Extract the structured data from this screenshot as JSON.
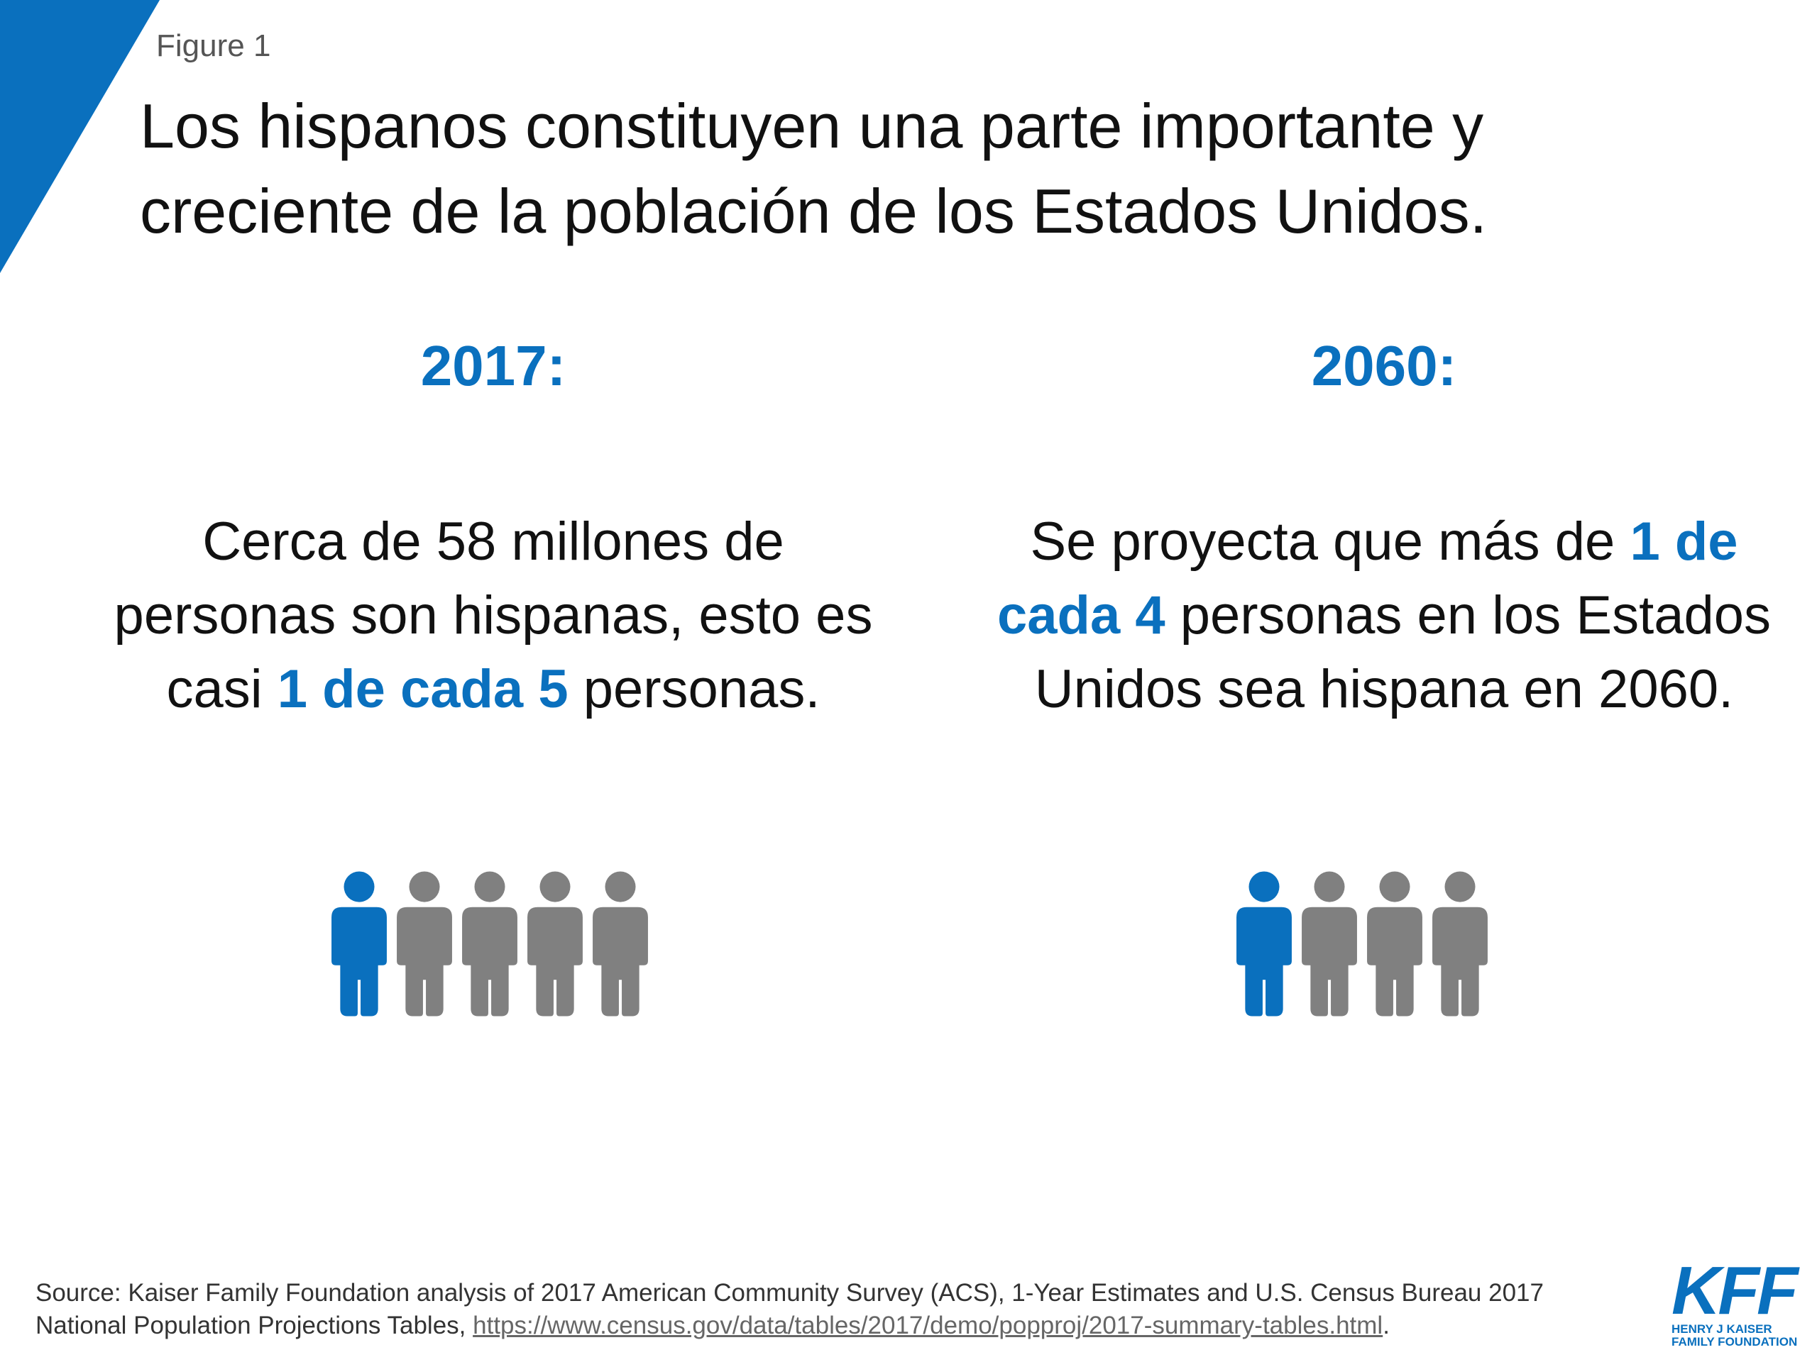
{
  "colors": {
    "accent": "#0A70BE",
    "gray": "#808080",
    "text": "#111111"
  },
  "figure_label": "Figure 1",
  "title_line1": "Los hispanos constituyen una parte importante y",
  "title_line2": "creciente de la población de los Estados Unidos.",
  "left": {
    "year": "2017:",
    "text_1": "Cerca de 58 millones de personas son hispanas, esto es casi ",
    "highlight": "1 de cada 5",
    "text_2": " personas.",
    "icons": {
      "highlighted": 1,
      "total": 5
    }
  },
  "right": {
    "year": "2060:",
    "text_1": "Se proyecta que más de ",
    "highlight": "1 de cada 4",
    "text_2": " personas en los Estados Unidos sea hispana en 2060.",
    "icons": {
      "highlighted": 1,
      "total": 4
    }
  },
  "source": {
    "text_1": "Source: Kaiser Family Foundation analysis of 2017 American Community Survey (ACS), 1-Year Estimates and U.S. Census Bureau 2017 National Population Projections Tables, ",
    "link": "https://www.census.gov/data/tables/2017/demo/popproj/2017-summary-tables.html",
    "text_2": "."
  },
  "logo": {
    "mark": "KFF",
    "line1": "HENRY J KAISER",
    "line2": "FAMILY FOUNDATION"
  }
}
